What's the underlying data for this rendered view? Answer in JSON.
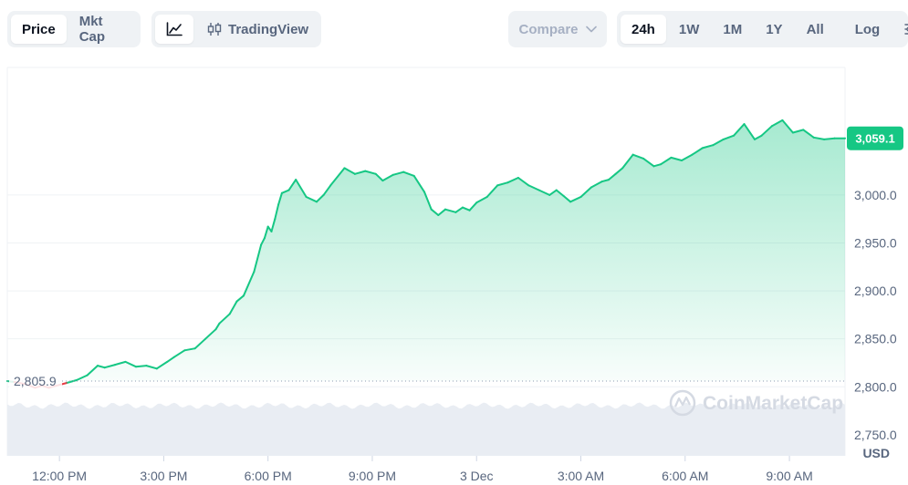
{
  "toolbar": {
    "price_label": "Price",
    "mktcap_label": "Mkt Cap",
    "tradingview_label": "TradingView",
    "compare_label": "Compare",
    "ranges": [
      "24h",
      "1W",
      "1M",
      "1Y",
      "All"
    ],
    "active_range": "24h",
    "log_label": "Log"
  },
  "watermark": "CoinMarketCap",
  "colors": {
    "up": "#16c784",
    "down": "#ea3943",
    "badge": "#16c784",
    "grid": "#eff2f5"
  },
  "chart_data": {
    "type": "area",
    "currency": "USD",
    "ylim": [
      2728,
      3133
    ],
    "yticks": [
      2750,
      2800,
      2850,
      2900,
      2950,
      3000
    ],
    "ytick_labels": [
      "2,750.0",
      "2,800.0",
      "2,850.0",
      "2,900.0",
      "2,950.0",
      "3,000.0"
    ],
    "xlim": [
      10.5,
      34.6
    ],
    "xticks": [
      12,
      15,
      18,
      21,
      24,
      27,
      30,
      33
    ],
    "xtick_labels": [
      "12:00 PM",
      "3:00 PM",
      "6:00 PM",
      "9:00 PM",
      "3 Dec",
      "3:00 AM",
      "6:00 AM",
      "9:00 AM"
    ],
    "x_unit": "hours since 2 Dec 00:00",
    "open_price": 2805.9,
    "open_label": "2,805.9",
    "last_price": 3059.1,
    "last_label": "3,059.1",
    "grid": true,
    "series": [
      {
        "x": [
          10.5,
          10.7,
          11.0,
          11.3,
          11.5,
          11.7,
          11.9,
          12.2,
          12.5,
          12.8,
          13.1,
          13.3,
          13.6,
          13.9,
          14.2,
          14.5,
          14.8,
          15.1,
          15.3,
          15.6,
          15.9,
          16.2,
          16.5,
          16.6,
          16.9,
          17.1,
          17.3,
          17.6,
          17.8,
          17.9,
          18.0,
          18.1,
          18.2,
          18.3,
          18.4,
          18.6,
          18.8,
          19.1,
          19.4,
          19.6,
          19.8,
          20.2,
          20.5,
          20.8,
          21.1,
          21.3,
          21.6,
          21.9,
          22.2,
          22.5,
          22.7,
          22.9,
          23.1,
          23.4,
          23.6,
          23.8,
          24.0,
          24.3,
          24.6,
          24.9,
          25.2,
          25.5,
          25.8,
          26.1,
          26.3,
          26.5,
          26.7,
          27.0,
          27.3,
          27.6,
          27.8,
          28.0,
          28.2,
          28.5,
          28.8,
          29.1,
          29.3,
          29.6,
          29.9,
          30.2,
          30.5,
          30.8,
          31.1,
          31.4,
          31.7,
          32.0,
          32.2,
          32.5,
          32.8,
          33.1,
          33.4,
          33.7,
          34.0,
          34.3,
          34.6
        ],
        "y": [
          2806,
          2805,
          2803,
          2799,
          2801,
          2799,
          2801,
          2804,
          2807,
          2812,
          2822,
          2820,
          2823,
          2826,
          2821,
          2822,
          2819,
          2826,
          2831,
          2838,
          2840,
          2850,
          2860,
          2866,
          2876,
          2889,
          2895,
          2920,
          2948,
          2955,
          2967,
          2962,
          2975,
          2990,
          3002,
          3005,
          3016,
          2998,
          2993,
          3000,
          3010,
          3028,
          3022,
          3025,
          3022,
          3015,
          3021,
          3024,
          3020,
          3003,
          2985,
          2979,
          2985,
          2982,
          2987,
          2984,
          2992,
          2998,
          3010,
          3013,
          3018,
          3010,
          3005,
          3000,
          3005,
          2999,
          2993,
          2998,
          3008,
          3014,
          3016,
          3022,
          3028,
          3042,
          3038,
          3030,
          3032,
          3039,
          3036,
          3042,
          3049,
          3052,
          3058,
          3062,
          3074,
          3058,
          3062,
          3072,
          3078,
          3065,
          3068,
          3060,
          3058,
          3059.1,
          3059.1
        ]
      }
    ]
  }
}
